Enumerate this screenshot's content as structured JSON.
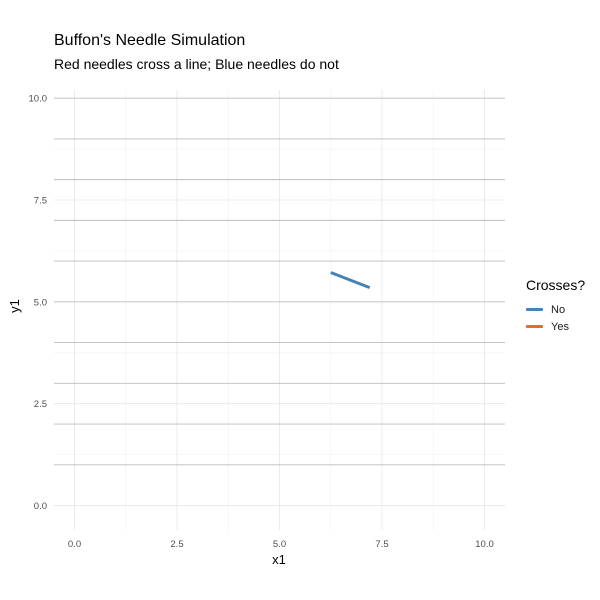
{
  "chart_data": {
    "type": "line",
    "title": "Buffon's Needle Simulation",
    "subtitle": "Red needles cross a line; Blue needles do not",
    "xlabel": "x1",
    "ylabel": "y1",
    "xlim": [
      -0.5,
      10.5
    ],
    "ylim": [
      -0.6,
      10.2
    ],
    "x_ticks": [
      0.0,
      2.5,
      5.0,
      7.5,
      10.0
    ],
    "y_ticks": [
      0.0,
      2.5,
      5.0,
      7.5,
      10.0
    ],
    "x_tick_labels": [
      "0.0",
      "2.5",
      "5.0",
      "7.5",
      "10.0"
    ],
    "y_tick_labels": [
      "0.0",
      "2.5",
      "5.0",
      "7.5",
      "10.0"
    ],
    "minor_x": [
      1.25,
      3.75,
      6.25,
      8.75
    ],
    "minor_y": [
      1.25,
      3.75,
      6.25,
      8.75
    ],
    "horizontal_lines": [
      1,
      2,
      3,
      4,
      5,
      6,
      7,
      8,
      9,
      10
    ],
    "grid": true,
    "legend": {
      "title": "Crosses?",
      "position": "right",
      "items": [
        {
          "label": "No",
          "color": "#4682B4"
        },
        {
          "label": "Yes",
          "color": "#F4623A"
        }
      ]
    },
    "series": [
      {
        "name": "No",
        "color": "#4682B4",
        "segments": [
          {
            "x1": 6.25,
            "y1": 5.72,
            "x2": 7.2,
            "y2": 5.35
          }
        ]
      },
      {
        "name": "Yes",
        "color": "#F4623A",
        "segments": []
      }
    ]
  }
}
